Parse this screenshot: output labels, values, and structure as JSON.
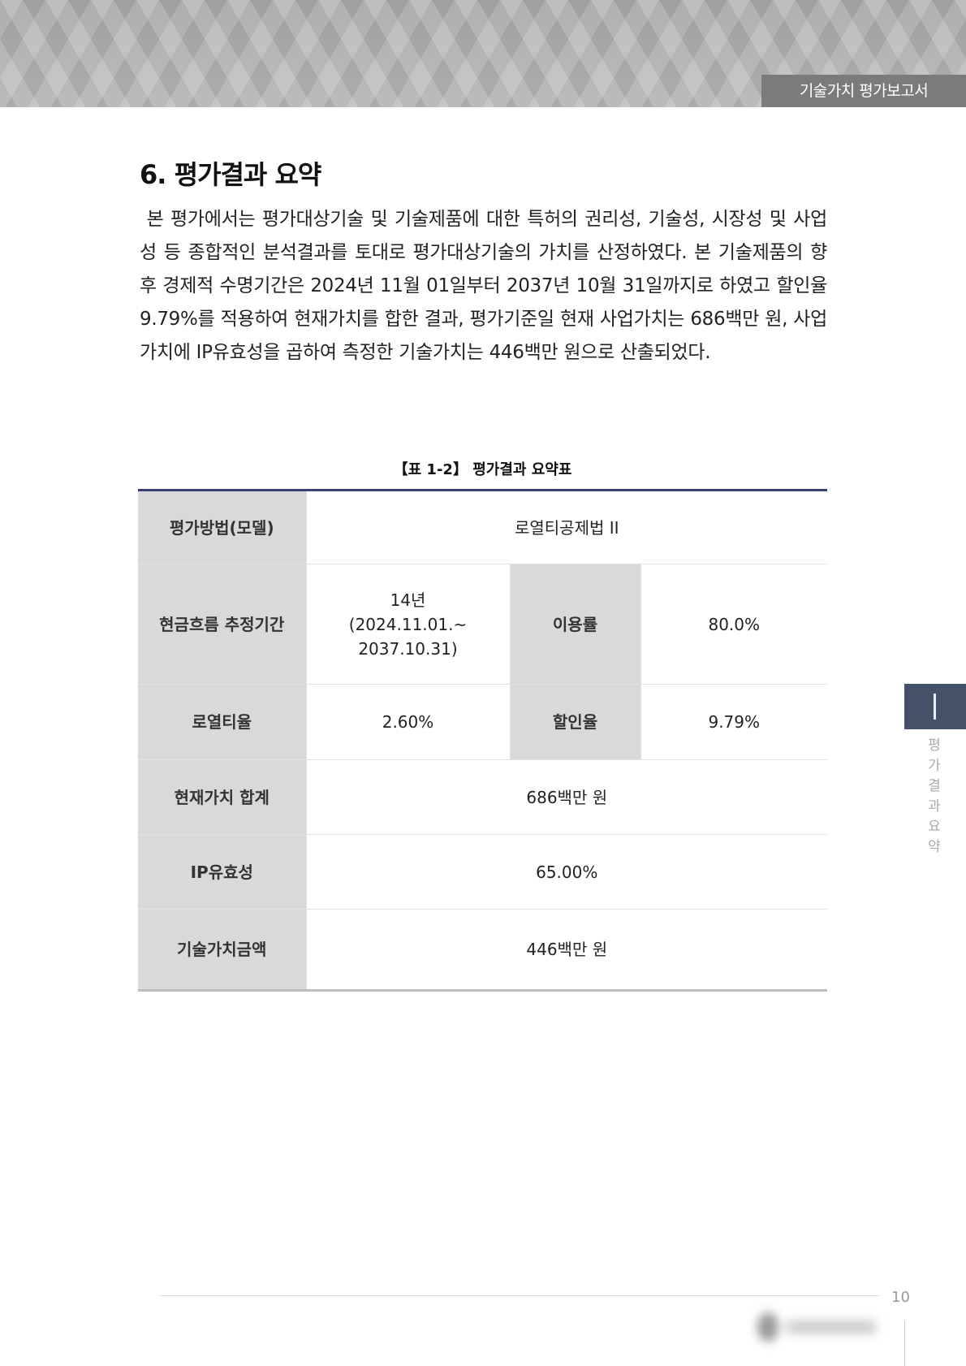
{
  "header": {
    "label": "기술가치 평가보고서"
  },
  "section": {
    "title": "6. 평가결과 요약",
    "paragraph": " 본 평가에서는 평가대상기술 및 기술제품에 대한 특허의 권리성, 기술성, 시장성 및 사업성 등 종합적인 분석결과를 토대로 평가대상기술의 가치를 산정하였다. 본 기술제품의 향후 경제적 수명기간은 2024년 11월 01일부터 2037년 10월 31일까지로 하였고 할인율 9.79%를 적용하여 현재가치를 합한 결과, 평가기준일 현재 사업가치는 686백만 원, 사업가치에 IP유효성을 곱하여 측정한 기술가치는 446백만 원으로 산출되었다."
  },
  "table": {
    "caption": "【표 1-2】 평가결과 요약표",
    "method_label": "평가방법(모델)",
    "method_value": "로열티공제법 II",
    "period_label": "현금흐름 추정기간",
    "period_years": "14년",
    "period_range_1": "(2024.11.01.~",
    "period_range_2": "2037.10.31)",
    "usage_label": "이용률",
    "usage_value": "80.0%",
    "royalty_label": "로열티율",
    "royalty_value": "2.60%",
    "discount_label": "할인율",
    "discount_value": "9.79%",
    "pv_label": "현재가치 합계",
    "pv_value": "686백만 원",
    "ip_label": "IP유효성",
    "ip_value": "65.00%",
    "tech_label": "기술가치금액",
    "tech_value": "446백만 원"
  },
  "side": {
    "chapter": "I",
    "chapter_title": "평가결과요약"
  },
  "footer": {
    "page": "10"
  },
  "colors": {
    "table_top": "#3a3f78",
    "label_bg": "#d9d9d9",
    "side_tab": "#435269",
    "header_label": "#7b7b7b"
  }
}
